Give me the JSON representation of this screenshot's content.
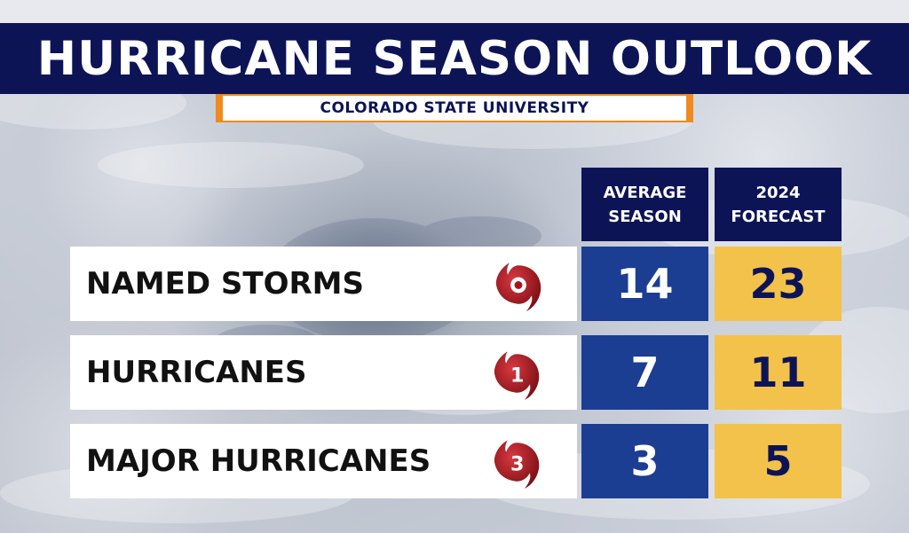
{
  "title": "HURRICANE SEASON OUTLOOK",
  "source": "COLORADO STATE UNIVERSITY",
  "columns": {
    "average": {
      "line1": "AVERAGE",
      "line2": "SEASON"
    },
    "forecast": {
      "line1": "2024",
      "line2": "FORECAST"
    }
  },
  "rows": [
    {
      "label": "NAMED STORMS",
      "icon": "tropical-storm-icon",
      "icon_number": "",
      "average": "14",
      "forecast": "23"
    },
    {
      "label": "HURRICANES",
      "icon": "hurricane-category-icon",
      "icon_number": "1",
      "average": "7",
      "forecast": "11"
    },
    {
      "label": "MAJOR HURRICANES",
      "icon": "hurricane-category-icon",
      "icon_number": "3",
      "average": "3",
      "forecast": "5"
    }
  ],
  "colors": {
    "navy": "#0d1456",
    "average_cell": "#1b3e92",
    "forecast_cell": "#f3c24a",
    "banner_border": "#f08a1e",
    "storm_icon": "#a8141c"
  }
}
